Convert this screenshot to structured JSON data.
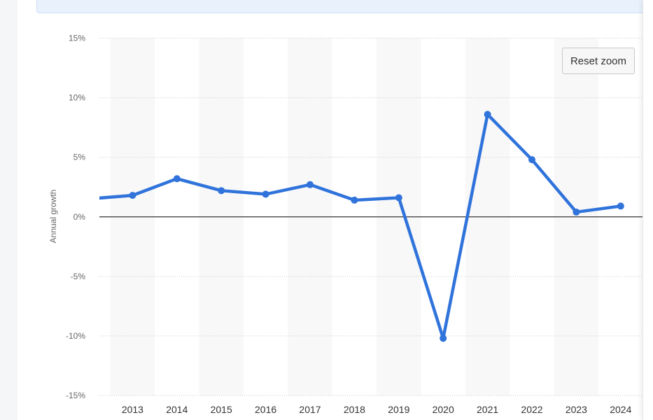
{
  "controls": {
    "reset_zoom_label": "Reset zoom"
  },
  "colors": {
    "series": "#2f73db",
    "band": "#f8f8f8",
    "grid": "#cccccc",
    "zero_line": "#333333",
    "tick_text": "#666666"
  },
  "chart_data": {
    "type": "line",
    "title": "",
    "xlabel": "",
    "ylabel": "Annual growth",
    "x": [
      "2012",
      "2013",
      "2014",
      "2015",
      "2016",
      "2017",
      "2018",
      "2019",
      "2020",
      "2021",
      "2022",
      "2023",
      "2024"
    ],
    "x_tick_labels": [
      "2013",
      "2014",
      "2015",
      "2016",
      "2017",
      "2018",
      "2019",
      "2020",
      "2021",
      "2022",
      "2023",
      "2024"
    ],
    "series": [
      {
        "values": [
          1.5,
          1.8,
          3.2,
          2.2,
          1.9,
          2.7,
          1.4,
          1.6,
          -10.2,
          8.6,
          4.8,
          0.4,
          0.9
        ]
      }
    ],
    "y_ticks": [
      15,
      10,
      5,
      0,
      -5,
      -10,
      -15
    ],
    "y_tick_labels": [
      "15%",
      "10%",
      "5%",
      "0%",
      "-5%",
      "-10%",
      "-15%"
    ],
    "ylim": [
      -15,
      15
    ],
    "grid": true,
    "legend": false
  }
}
